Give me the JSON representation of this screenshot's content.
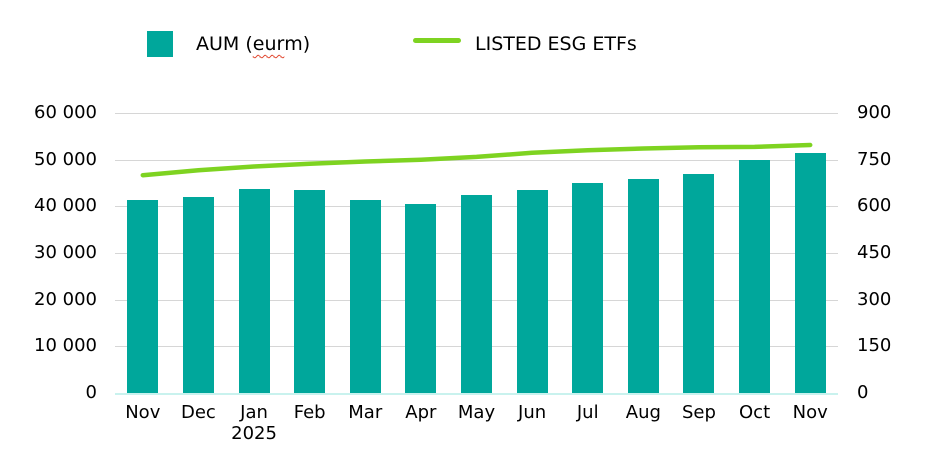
{
  "legend": {
    "aum": {
      "prefix": "AUM (",
      "misspelled_word": "eur",
      "suffix": " m)",
      "full_label": "AUM (eur m)"
    },
    "etf": {
      "label": "LISTED ESG ETFs"
    }
  },
  "colors": {
    "bar": "#00a79b",
    "line": "#7ed321",
    "gridline": "#d6d6d6",
    "baseline": "#c9f2ee",
    "text": "#000000",
    "squiggle": "#e0442c"
  },
  "chart_data": {
    "type": "bar",
    "note": "combo chart: teal column series on left axis + green line series on right axis",
    "categories": [
      "Nov",
      "Dec",
      "Jan",
      "Feb",
      "Mar",
      "Apr",
      "May",
      "Jun",
      "Jul",
      "Aug",
      "Sep",
      "Oct",
      "Nov"
    ],
    "x_secondary_label": {
      "index": 2,
      "text": "2025"
    },
    "series": [
      {
        "name": "AUM (eur m)",
        "type": "bar",
        "axis": "left",
        "values": [
          41300,
          42000,
          43800,
          43500,
          41400,
          40500,
          42500,
          43600,
          45100,
          45800,
          46900,
          50000,
          51400
        ]
      },
      {
        "name": "LISTED ESG ETFs",
        "type": "line",
        "axis": "right",
        "values": [
          700,
          716,
          728,
          737,
          744,
          750,
          759,
          772,
          780,
          786,
          790,
          791,
          797
        ]
      }
    ],
    "left_axis": {
      "min": 0,
      "max": 60000,
      "tick_values": [
        0,
        10000,
        20000,
        30000,
        40000,
        50000,
        60000
      ],
      "tick_labels": [
        "0",
        "10 000",
        "20 000",
        "30 000",
        "40 000",
        "50 000",
        "60 000"
      ]
    },
    "right_axis": {
      "min": 0,
      "max": 900,
      "tick_values": [
        0,
        150,
        300,
        450,
        600,
        750,
        900
      ],
      "tick_labels": [
        "0",
        "150",
        "300",
        "450",
        "600",
        "750",
        "900"
      ]
    },
    "title": "",
    "xlabel": "",
    "ylabel": "",
    "grid": true,
    "legend_position": "top"
  }
}
